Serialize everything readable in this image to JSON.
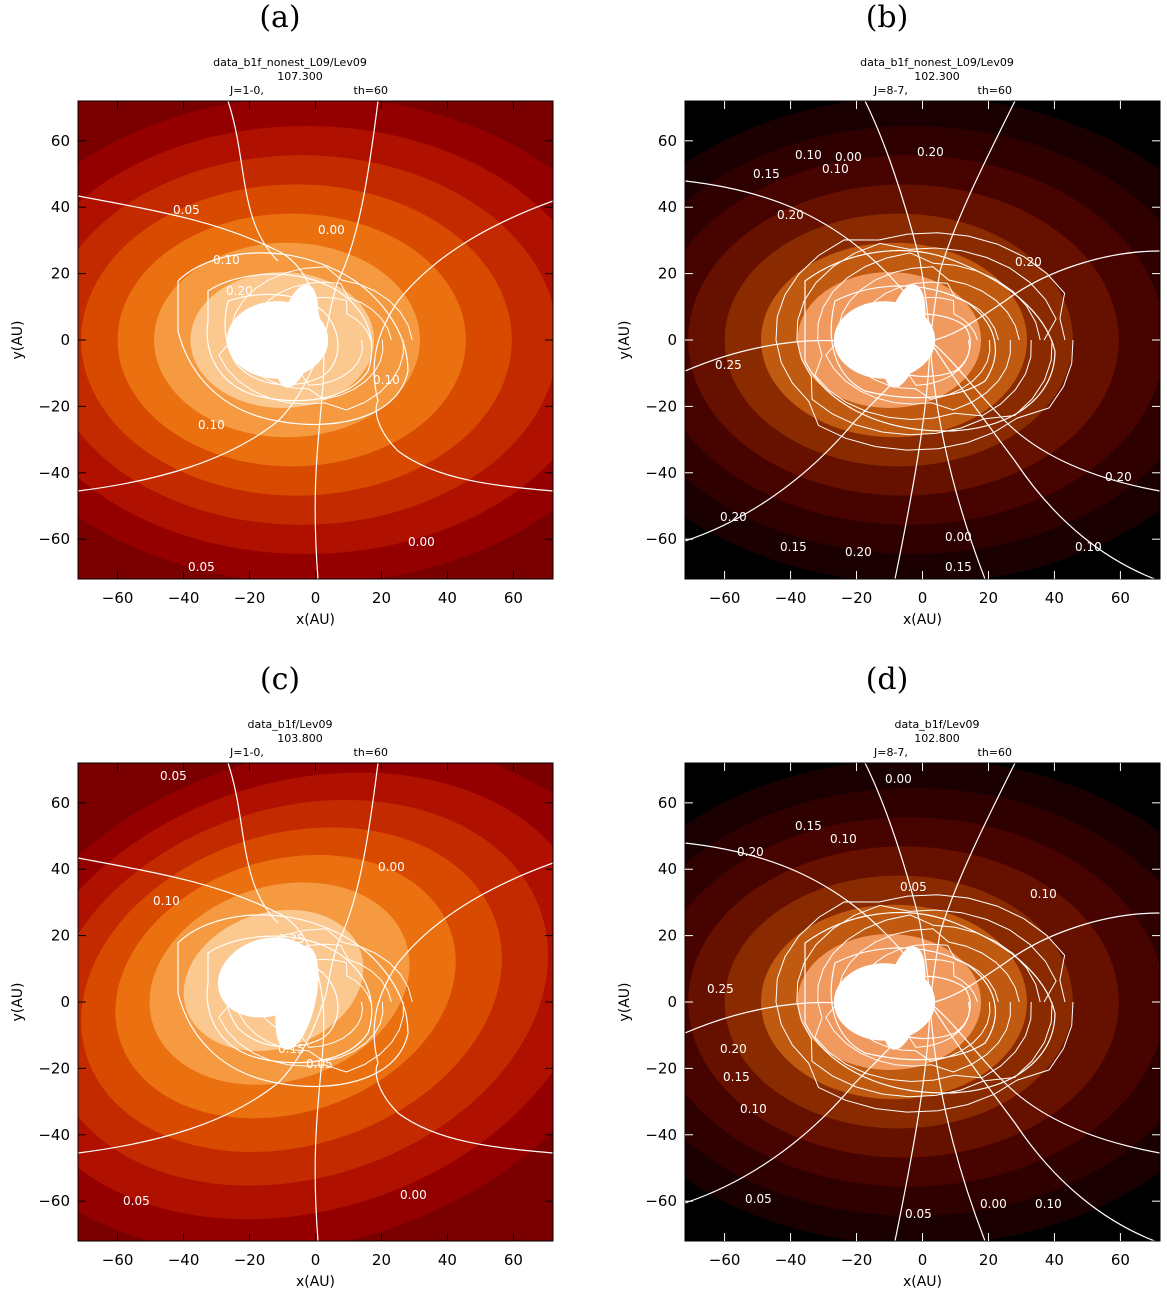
{
  "panels": [
    {
      "letter": "(a)",
      "path": "data_b1f_nonest_L09/Lev09",
      "value": "107.300",
      "transition": "J=1-0,",
      "theta": "th=60",
      "contour_labels": [
        "0.05",
        "0.00",
        "0.10",
        "0.20",
        "0.10",
        "0.10",
        "0.05",
        "0.00"
      ]
    },
    {
      "letter": "(b)",
      "path": "data_b1f_nonest_L09/Lev09",
      "value": "102.300",
      "transition": "J=8-7,",
      "theta": "th=60",
      "contour_labels": [
        "0.15",
        "0.10",
        "0.00",
        "0.20",
        "0.10",
        "0.20",
        "0.20",
        "0.25",
        "0.20",
        "0.20",
        "0.15",
        "0.20",
        "0.10",
        "0.15",
        "0.00"
      ]
    },
    {
      "letter": "(c)",
      "path": "data_b1f/Lev09",
      "value": "103.800",
      "transition": "J=1-0,",
      "theta": "th=60",
      "contour_labels": [
        "0.05",
        "0.10",
        "0.00",
        "0.25",
        "0.15",
        "0.05",
        "0.00",
        "0.05"
      ]
    },
    {
      "letter": "(d)",
      "path": "data_b1f/Lev09",
      "value": "102.800",
      "transition": "J=8-7,",
      "theta": "th=60",
      "contour_labels": [
        "0.15",
        "0.10",
        "0.00",
        "0.20",
        "0.05",
        "0.10",
        "0.25",
        "0.20",
        "0.15",
        "0.10",
        "0.05",
        "0.05",
        "0.00",
        "0.10"
      ]
    }
  ],
  "chart_data": [
    {
      "type": "heatmap",
      "panel": "(a)",
      "xlabel": "x(AU)",
      "ylabel": "y(AU)",
      "xlim": [
        -72,
        72
      ],
      "ylim": [
        -72,
        72
      ],
      "xticks": [
        -60,
        -40,
        -20,
        0,
        20,
        40,
        60
      ],
      "yticks": [
        -60,
        -40,
        -20,
        0,
        20,
        40,
        60
      ],
      "colormap": "red-orange-white",
      "background": "#7a0000"
    },
    {
      "type": "heatmap",
      "panel": "(b)",
      "xlabel": "x(AU)",
      "ylabel": "y(AU)",
      "xlim": [
        -72,
        72
      ],
      "ylim": [
        -72,
        72
      ],
      "xticks": [
        -60,
        -40,
        -20,
        0,
        20,
        40,
        60
      ],
      "yticks": [
        -60,
        -40,
        -20,
        0,
        20,
        40,
        60
      ],
      "colormap": "black-red-white",
      "background": "#000000"
    },
    {
      "type": "heatmap",
      "panel": "(c)",
      "xlabel": "x(AU)",
      "ylabel": "y(AU)",
      "xlim": [
        -72,
        72
      ],
      "ylim": [
        -72,
        72
      ],
      "xticks": [
        -60,
        -40,
        -20,
        0,
        20,
        40,
        60
      ],
      "yticks": [
        -60,
        -40,
        -20,
        0,
        20,
        40,
        60
      ],
      "colormap": "red-orange-white",
      "background": "#7a0000"
    },
    {
      "type": "heatmap",
      "panel": "(d)",
      "xlabel": "x(AU)",
      "ylabel": "y(AU)",
      "xlim": [
        -72,
        72
      ],
      "ylim": [
        -72,
        72
      ],
      "xticks": [
        -60,
        -40,
        -20,
        0,
        20,
        40,
        60
      ],
      "yticks": [
        -60,
        -40,
        -20,
        0,
        20,
        40,
        60
      ],
      "colormap": "black-red-white",
      "background": "#000000"
    }
  ]
}
